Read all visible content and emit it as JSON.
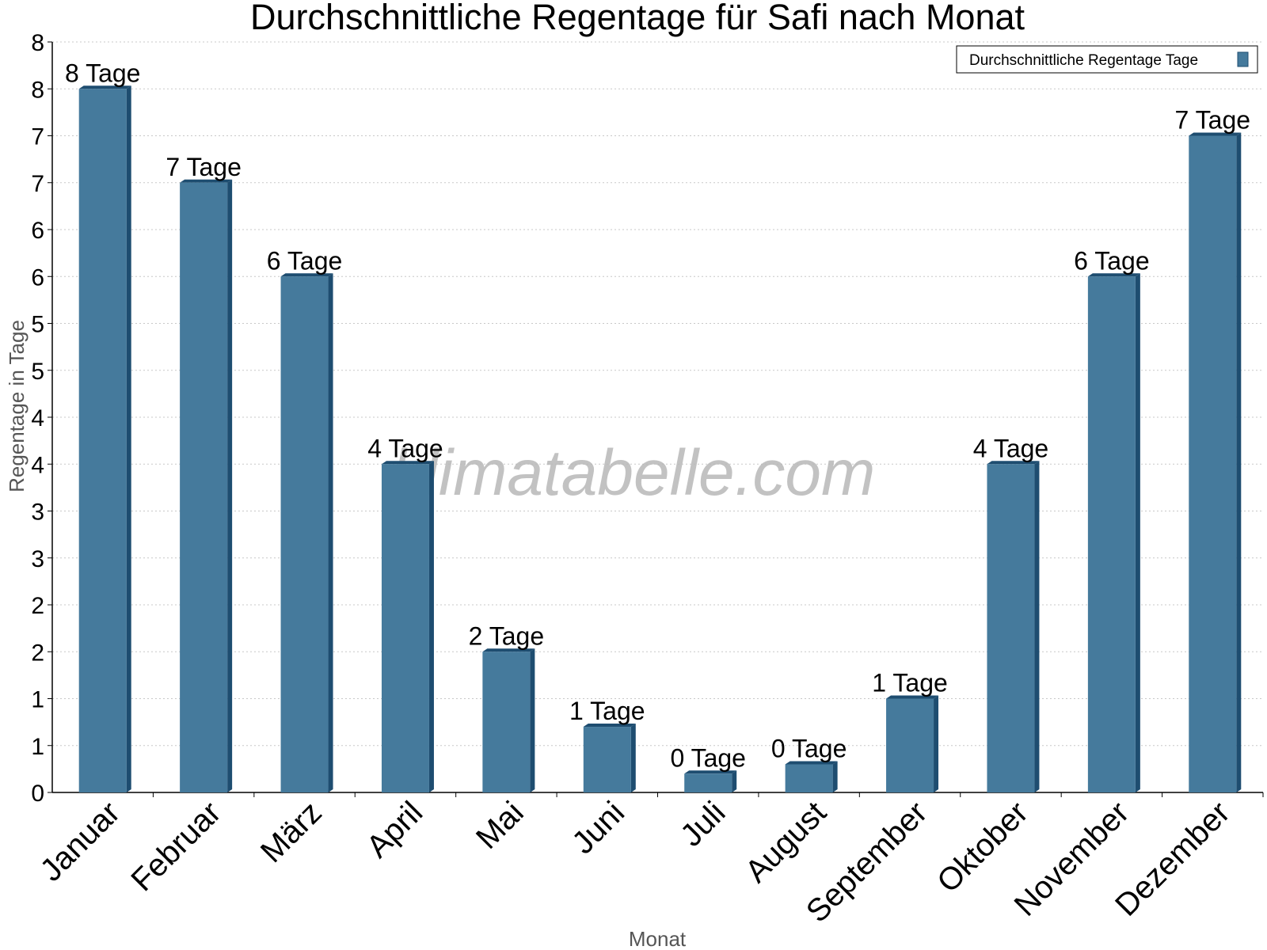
{
  "chart_data": {
    "type": "bar",
    "title": "Durchschnittliche Regentage für Safi nach Monat",
    "xlabel": "Monat",
    "ylabel": "Regentage in Tage",
    "categories": [
      "Januar",
      "Februar",
      "März",
      "April",
      "Mai",
      "Juni",
      "Juli",
      "August",
      "September",
      "Oktober",
      "November",
      "Dezember"
    ],
    "series": [
      {
        "name": "Durchschnittliche Regentage Tage",
        "values": [
          7.5,
          6.5,
          5.5,
          3.5,
          1.5,
          0.7,
          0.2,
          0.3,
          1.0,
          3.5,
          5.5,
          7.0
        ],
        "labels": [
          "8 Tage",
          "7 Tage",
          "6 Tage",
          "4 Tage",
          "2 Tage",
          "1 Tage",
          "0 Tage",
          "0 Tage",
          "1 Tage",
          "4 Tage",
          "6 Tage",
          "7 Tage"
        ]
      }
    ],
    "ylim": [
      0,
      8
    ],
    "yticks": [
      0,
      0.5,
      1,
      1.5,
      2,
      2.5,
      3,
      3.5,
      4,
      4.5,
      5,
      5.5,
      6,
      6.5,
      7,
      7.5,
      8
    ],
    "ytick_labels": [
      "0",
      "1",
      "1",
      "2",
      "2",
      "3",
      "3",
      "4",
      "4",
      "5",
      "5",
      "6",
      "6",
      "7",
      "7",
      "8",
      "8"
    ],
    "grid": true,
    "legend_position": "top-right",
    "bar_color": "#457a9c",
    "bar_dark_color": "#1e4d70",
    "watermark": "klimatabelle.com"
  }
}
